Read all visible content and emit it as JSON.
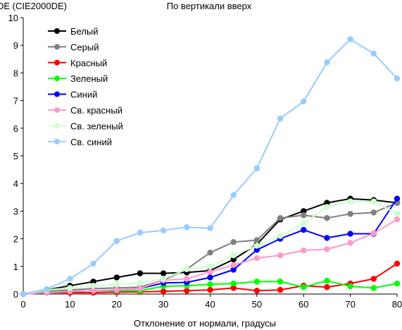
{
  "chart_data": {
    "type": "line",
    "title": "По вертикали вверх",
    "ylabel": "DE (CIE2000DE)",
    "xlabel": "Отклонение от нормали, градусы",
    "xlim": [
      0,
      80
    ],
    "ylim": [
      0,
      10
    ],
    "x_ticks": [
      0,
      10,
      20,
      30,
      40,
      50,
      60,
      70,
      80
    ],
    "y_ticks": [
      0,
      1,
      2,
      3,
      4,
      5,
      6,
      7,
      8,
      9,
      10
    ],
    "grid": false,
    "legend_position": "top-left",
    "x": [
      0,
      5,
      10,
      15,
      20,
      25,
      30,
      35,
      40,
      45,
      50,
      55,
      60,
      65,
      70,
      75,
      80
    ],
    "series": [
      {
        "name": "Белый",
        "color": "#000000",
        "values": [
          0,
          0.15,
          0.3,
          0.45,
          0.6,
          0.75,
          0.75,
          0.78,
          0.85,
          1.25,
          1.8,
          2.7,
          3.0,
          3.3,
          3.45,
          3.4,
          3.3
        ]
      },
      {
        "name": "Серый",
        "color": "#808080",
        "values": [
          0,
          0.1,
          0.15,
          0.2,
          0.22,
          0.25,
          0.5,
          0.9,
          1.5,
          1.88,
          1.95,
          2.75,
          2.85,
          2.75,
          2.9,
          2.95,
          3.3
        ]
      },
      {
        "name": "Красный",
        "color": "#ff0000",
        "values": [
          0,
          0.05,
          0.05,
          0.05,
          0.07,
          0.08,
          0.1,
          0.12,
          0.15,
          0.22,
          0.12,
          0.15,
          0.3,
          0.25,
          0.38,
          0.55,
          1.1
        ]
      },
      {
        "name": "Зеленый",
        "color": "#00ff00",
        "values": [
          0,
          0.08,
          0.1,
          0.12,
          0.12,
          0.12,
          0.28,
          0.3,
          0.35,
          0.38,
          0.45,
          0.45,
          0.25,
          0.48,
          0.28,
          0.22,
          0.38
        ]
      },
      {
        "name": "Синий",
        "color": "#0000ff",
        "values": [
          0,
          0.05,
          0.1,
          0.12,
          0.15,
          0.2,
          0.4,
          0.42,
          0.6,
          0.88,
          1.6,
          2.0,
          2.32,
          2.03,
          2.18,
          2.18,
          3.45
        ]
      },
      {
        "name": "Св. красный",
        "color": "#ff99cc",
        "values": [
          0,
          0.05,
          0.1,
          0.12,
          0.15,
          0.2,
          0.5,
          0.55,
          0.8,
          1.05,
          1.3,
          1.4,
          1.58,
          1.62,
          1.85,
          2.2,
          2.7
        ]
      },
      {
        "name": "Св. зеленый",
        "color": "#ccffcc",
        "values": [
          0,
          0.15,
          0.22,
          0.3,
          0.35,
          0.4,
          0.55,
          0.9,
          1.0,
          1.4,
          1.75,
          2.1,
          2.55,
          3.15,
          3.35,
          3.35,
          2.9
        ]
      },
      {
        "name": "Св. синий",
        "color": "#99ccff",
        "values": [
          0,
          0.18,
          0.55,
          1.1,
          1.92,
          2.22,
          2.3,
          2.42,
          2.38,
          3.58,
          4.55,
          6.35,
          6.97,
          8.38,
          9.22,
          8.7,
          7.8
        ]
      }
    ]
  }
}
